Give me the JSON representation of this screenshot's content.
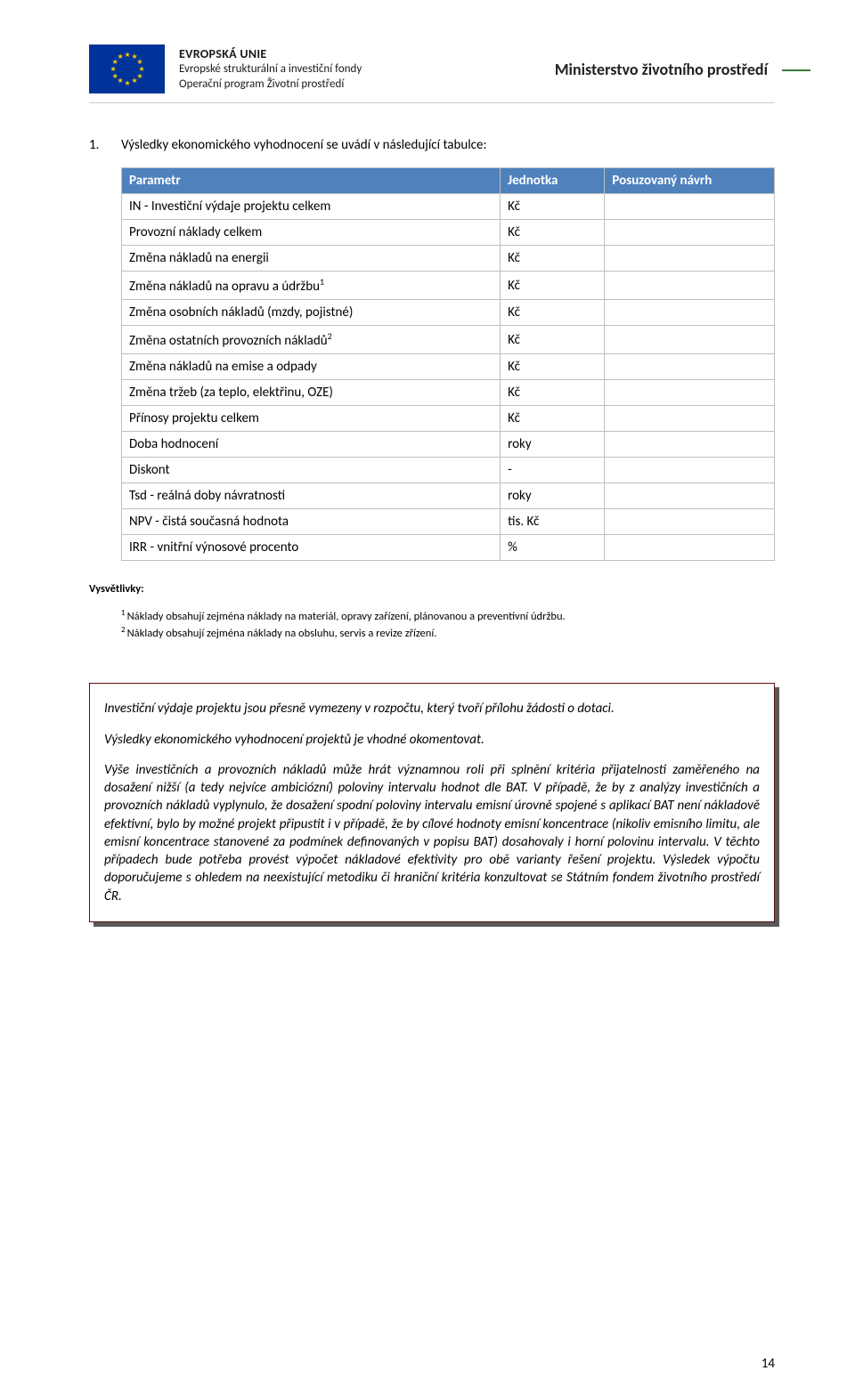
{
  "header": {
    "eu_title": "EVROPSKÁ UNIE",
    "eu_line1": "Evropské strukturální a investiční fondy",
    "eu_line2": "Operační program Životní prostředí",
    "ministry": "Ministerstvo životního prostředí",
    "flag_bg": "#003399",
    "flag_star": "#ffcc00"
  },
  "section": {
    "number": "1.",
    "text": "Výsledky ekonomického vyhodnocení se uvádí v následující tabulce:"
  },
  "table": {
    "header_bg": "#4f81bd",
    "header_fg": "#ffffff",
    "border": "#bfbfbf",
    "columns": {
      "param": "Parametr",
      "unit": "Jednotka",
      "value": "Posuzovaný návrh"
    },
    "rows": [
      {
        "param": "IN - Investiční výdaje projektu celkem",
        "unit": "Kč",
        "value": ""
      },
      {
        "param": "Provozní náklady celkem",
        "unit": "Kč",
        "value": ""
      },
      {
        "param": "Změna nákladů na energii",
        "unit": "Kč",
        "value": ""
      },
      {
        "param": "Změna nákladů na opravu a údržbu",
        "sup": "1",
        "unit": "Kč",
        "value": ""
      },
      {
        "param": "Změna osobních nákladů (mzdy, pojistné)",
        "unit": "Kč",
        "value": ""
      },
      {
        "param": "Změna ostatních provozních nákladů",
        "sup": "2",
        "unit": "Kč",
        "value": ""
      },
      {
        "param": "Změna nákladů na emise a odpady",
        "unit": "Kč",
        "value": ""
      },
      {
        "param": "Změna tržeb (za teplo, elektřinu, OZE)",
        "unit": "Kč",
        "value": ""
      },
      {
        "param": "Přínosy projektu celkem",
        "unit": "Kč",
        "value": ""
      },
      {
        "param": "Doba hodnocení",
        "unit": "roky",
        "value": ""
      },
      {
        "param": "Diskont",
        "unit": "-",
        "value": ""
      },
      {
        "param": "Tsd - reálná doby návratnosti",
        "unit": "roky",
        "value": ""
      },
      {
        "param": "NPV - čistá současná hodnota",
        "unit": "tis. Kč",
        "value": ""
      },
      {
        "param": "IRR - vnitřní výnosové procento",
        "unit": "%",
        "value": ""
      }
    ]
  },
  "footnotes": {
    "label": "Vysvětlivky:",
    "notes": [
      {
        "sup": "1",
        "text": "Náklady obsahují zejména náklady na materiál, opravy zařízení, plánovanou a preventivní údržbu."
      },
      {
        "sup": "2",
        "text": "Náklady obsahují zejména náklady na obsluhu, servis a revize zřízení."
      }
    ]
  },
  "box": {
    "border": "#5a0f0f",
    "shadow": "#5a5a5a",
    "paragraphs": [
      "Investiční výdaje projektu jsou přesně vymezeny v rozpočtu, který tvoří přílohu žádosti o dotaci.",
      "Výsledky ekonomického vyhodnocení projektů je vhodné okomentovat.",
      "Výše investičních a provozních nákladů může hrát významnou roli při splnění kritéria přijatelnosti zaměřeného na dosažení nižší (a tedy nejvíce ambiciózní) poloviny intervalu hodnot dle BAT. V případě, že by z analýzy investičních a provozních nákladů vyplynulo, že dosažení spodní poloviny intervalu emisní úrovně spojené s aplikací BAT není nákladově efektivní, bylo by možné projekt připustit i v případě, že by cílové hodnoty emisní koncentrace (nikoliv emisního limitu, ale emisní koncentrace stanovené za podmínek definovaných v popisu BAT) dosahovaly i horní polovinu intervalu. V těchto případech bude potřeba provést výpočet nákladové efektivity pro obě varianty řešení projektu. Výsledek výpočtu doporučujeme s ohledem na neexistující metodiku či hraniční kritéria konzultovat se Státním fondem životního prostředí ČR."
    ]
  },
  "page_number": "14"
}
